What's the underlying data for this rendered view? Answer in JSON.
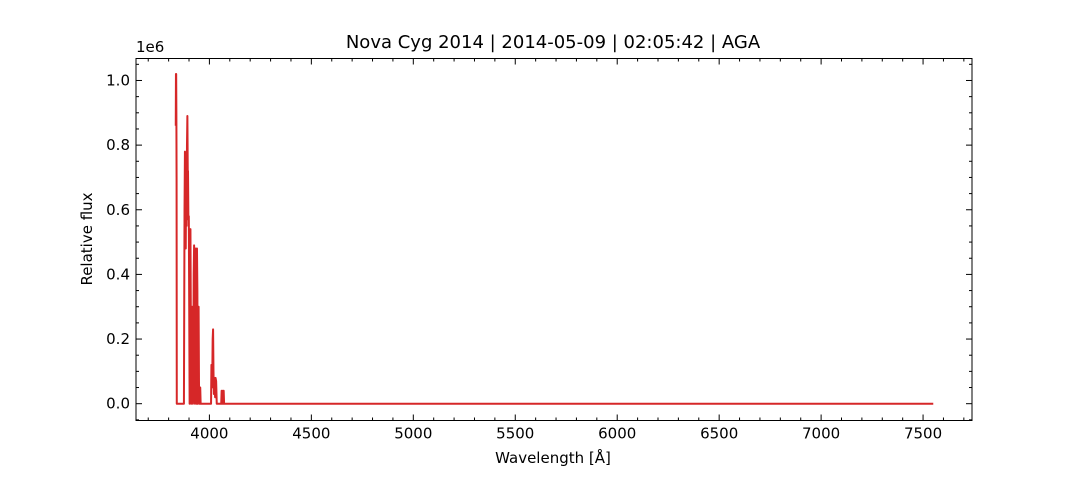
{
  "chart_data": {
    "type": "line",
    "title": "Nova Cyg 2014 | 2014-05-09 | 02:05:42 | AGA",
    "xlabel": "Wavelength [Å]",
    "ylabel": "Relative flux",
    "y_offset_label": "1e6",
    "xlim": [
      3640,
      7740
    ],
    "ylim": [
      -0.052,
      1.068
    ],
    "x_ticks": [
      4000,
      4500,
      5000,
      5500,
      6000,
      6500,
      7000,
      7500
    ],
    "x_tick_labels": [
      "4000",
      "4500",
      "5000",
      "5500",
      "6000",
      "6500",
      "7000",
      "7500"
    ],
    "y_ticks": [
      0.0,
      0.2,
      0.4,
      0.6,
      0.8,
      1.0
    ],
    "y_tick_labels": [
      "0.0",
      "0.2",
      "0.4",
      "0.6",
      "0.8",
      "1.0"
    ],
    "grid": false,
    "series": [
      {
        "color": "#d62728",
        "x": [
          3835,
          3836,
          3837,
          3838,
          3839,
          3840,
          3842,
          3850,
          3855,
          3860,
          3865,
          3870,
          3875,
          3878,
          3880,
          3882,
          3884,
          3886,
          3888,
          3890,
          3892,
          3894,
          3895,
          3897,
          3899,
          3901,
          3903,
          3905,
          3907,
          3909,
          3911,
          3913,
          3915,
          3917,
          3919,
          3921,
          3923,
          3925,
          3927,
          3929,
          3931,
          3933,
          3935,
          3937,
          3939,
          3941,
          3943,
          3945,
          3947,
          3949,
          3951,
          3953,
          3955,
          3957,
          3959,
          3961,
          3963,
          3965,
          3967,
          3969,
          3971,
          3973,
          3976,
          3980,
          3985,
          3990,
          3995,
          4000,
          4005,
          4008,
          4010,
          4012,
          4014,
          4016,
          4018,
          4020,
          4022,
          4024,
          4026,
          4028,
          4030,
          4033,
          4036,
          4040,
          4045,
          4050,
          4055,
          4058,
          4060,
          4062,
          4064,
          4066,
          4068,
          4070,
          4072,
          4074,
          4076,
          4080,
          4100,
          4200,
          5000,
          6000,
          7000,
          7550
        ],
        "y": [
          0.86,
          1.02,
          1.02,
          0.9,
          0.7,
          0.0,
          0.0,
          0.0,
          0.0,
          0.0,
          0.0,
          0.0,
          0.0,
          0.6,
          0.78,
          0.62,
          0.48,
          0.72,
          0.55,
          0.8,
          0.89,
          0.7,
          0.72,
          0.57,
          0.58,
          0.3,
          0.0,
          0.1,
          0.54,
          0.25,
          0.0,
          0.1,
          0.3,
          0.15,
          0.0,
          0.1,
          0.4,
          0.49,
          0.3,
          0.0,
          0.45,
          0.48,
          0.2,
          0.0,
          0.48,
          0.35,
          0.0,
          0.1,
          0.3,
          0.05,
          0.0,
          0.0,
          0.05,
          0.0,
          0.0,
          0.0,
          0.0,
          0.0,
          0.0,
          0.0,
          0.0,
          0.0,
          0.0,
          0.0,
          0.0,
          0.0,
          0.0,
          0.0,
          0.0,
          0.0,
          0.12,
          0.05,
          0.08,
          0.2,
          0.23,
          0.1,
          0.03,
          0.08,
          0.05,
          0.02,
          0.08,
          0.07,
          0.0,
          0.0,
          0.0,
          0.0,
          0.0,
          0.0,
          0.04,
          0.0,
          0.03,
          0.04,
          0.0,
          0.04,
          0.0,
          0.0,
          0.0,
          0.0,
          0.0,
          0.0,
          0.0,
          0.0,
          0.0,
          0.0
        ]
      }
    ]
  }
}
